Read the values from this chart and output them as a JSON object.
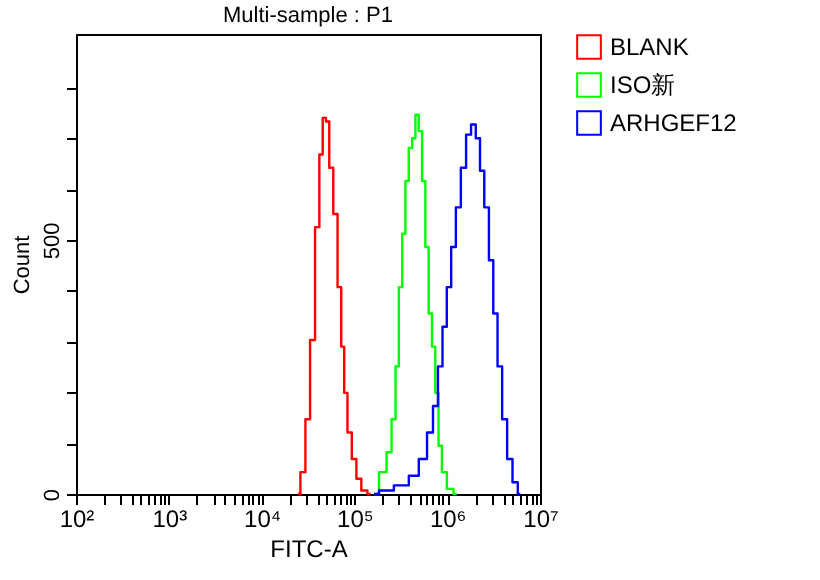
{
  "chart_data": {
    "type": "step",
    "title": "Multi-sample : P1",
    "xlabel": "FITC-A",
    "ylabel": "Count",
    "log": "x",
    "legend": "right",
    "xlim": [
      100,
      10000000
    ],
    "ylim": [
      0,
      905
    ],
    "xticks": [
      {
        "value": 100,
        "label": "10²"
      },
      {
        "value": 200,
        "label": null
      },
      {
        "value": 300,
        "label": null
      },
      {
        "value": 400,
        "label": null
      },
      {
        "value": 500,
        "label": null
      },
      {
        "value": 600,
        "label": null
      },
      {
        "value": 700,
        "label": null
      },
      {
        "value": 800,
        "label": null
      },
      {
        "value": 900,
        "label": null
      },
      {
        "value": 1000,
        "label": "10³"
      },
      {
        "value": 2000,
        "label": null
      },
      {
        "value": 3000,
        "label": null
      },
      {
        "value": 4000,
        "label": null
      },
      {
        "value": 5000,
        "label": null
      },
      {
        "value": 6000,
        "label": null
      },
      {
        "value": 7000,
        "label": null
      },
      {
        "value": 8000,
        "label": null
      },
      {
        "value": 9000,
        "label": null
      },
      {
        "value": 10000,
        "label": "10⁴"
      },
      {
        "value": 20000,
        "label": null
      },
      {
        "value": 30000,
        "label": null
      },
      {
        "value": 40000,
        "label": null
      },
      {
        "value": 50000,
        "label": null
      },
      {
        "value": 60000,
        "label": null
      },
      {
        "value": 70000,
        "label": null
      },
      {
        "value": 80000,
        "label": null
      },
      {
        "value": 90000,
        "label": null
      },
      {
        "value": 100000,
        "label": "10⁵"
      },
      {
        "value": 200000,
        "label": null
      },
      {
        "value": 300000,
        "label": null
      },
      {
        "value": 400000,
        "label": null
      },
      {
        "value": 500000,
        "label": null
      },
      {
        "value": 600000,
        "label": null
      },
      {
        "value": 700000,
        "label": null
      },
      {
        "value": 800000,
        "label": null
      },
      {
        "value": 900000,
        "label": null
      },
      {
        "value": 1000000,
        "label": "10⁶"
      },
      {
        "value": 2000000,
        "label": null
      },
      {
        "value": 3000000,
        "label": null
      },
      {
        "value": 4000000,
        "label": null
      },
      {
        "value": 5000000,
        "label": null
      },
      {
        "value": 6000000,
        "label": null
      },
      {
        "value": 7000000,
        "label": null
      },
      {
        "value": 8000000,
        "label": null
      },
      {
        "value": 9000000,
        "label": null
      },
      {
        "value": 10000000,
        "label": "10⁷"
      }
    ],
    "yticks": [
      0,
      {
        "value": 100,
        "label": null
      },
      {
        "value": 200,
        "label": null
      },
      {
        "value": 300,
        "label": null
      },
      {
        "value": 400,
        "label": null
      },
      500,
      {
        "value": 600,
        "label": null
      },
      {
        "value": 700,
        "label": null
      },
      {
        "value": 800,
        "label": null
      }
    ],
    "series": [
      {
        "name": "BLANK",
        "color": "#ff0000",
        "x": [
          24500,
          28000,
          31400,
          35300,
          40200,
          43700,
          47500,
          51400,
          55900,
          62700,
          69200,
          75100,
          80200,
          88400,
          99500,
          111000,
          127000,
          150000
        ],
        "values": [
          0,
          43,
          147,
          303,
          525,
          668,
          740,
          733,
          642,
          551,
          407,
          290,
          199,
          121,
          69,
          30,
          7,
          0
        ]
      },
      {
        "name": "ISO新",
        "color": "#00ff00",
        "x": [
          163000,
          208000,
          237000,
          267000,
          289000,
          314000,
          341000,
          369000,
          402000,
          437000,
          473000,
          514000,
          559000,
          605000,
          658000,
          715000,
          774000,
          841000,
          914000,
          1077000,
          1268000
        ],
        "values": [
          0,
          43,
          82,
          147,
          251,
          407,
          512,
          616,
          681,
          700,
          746,
          714,
          616,
          486,
          355,
          290,
          199,
          95,
          43,
          10,
          0
        ]
      },
      {
        "name": "ARHGEF12",
        "color": "#0000ff",
        "x": [
          163000,
          208000,
          341000,
          437000,
          559000,
          658000,
          751000,
          841000,
          942000,
          1040000,
          1172000,
          1312000,
          1500000,
          1702000,
          1919000,
          2148000,
          2371000,
          2655000,
          2987000,
          3296000,
          3690000,
          4140000,
          4730000,
          5400000,
          6140000
        ],
        "values": [
          0,
          7,
          17,
          36,
          69,
          121,
          173,
          251,
          329,
          407,
          486,
          564,
          642,
          707,
          727,
          700,
          636,
          564,
          460,
          355,
          251,
          147,
          69,
          23,
          0
        ]
      }
    ]
  }
}
